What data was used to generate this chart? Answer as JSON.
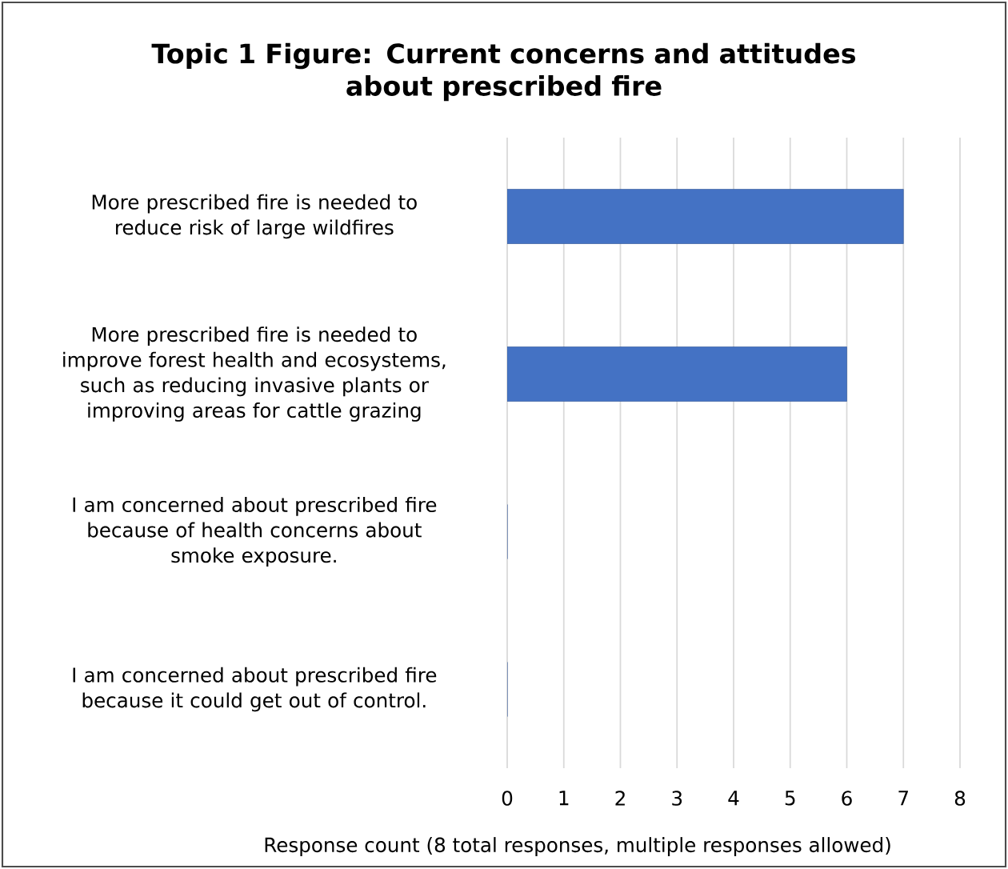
{
  "chart_data": {
    "type": "bar",
    "orientation": "horizontal",
    "title": "Topic 1 Figure: Current concerns and attitudes\nabout prescribed fire",
    "categories": [
      "More prescribed fire is needed to\nreduce risk of large wildfires",
      "More prescribed fire is needed to\nimprove forest health and ecosystems,\nsuch as reducing invasive plants or\nimproving areas for cattle grazing",
      "I am concerned about prescribed fire\nbecause of health concerns about\nsmoke exposure.",
      "I am concerned about prescribed fire\nbecause it could get out of control."
    ],
    "values": [
      7,
      6,
      0,
      0
    ],
    "color": "#4472c4",
    "xlabel": "Response count (8 total responses, multiple responses allowed)",
    "xlim": [
      0,
      8
    ],
    "xticks": [
      0,
      1,
      2,
      3,
      4,
      5,
      6,
      7,
      8
    ],
    "grid": "x"
  }
}
